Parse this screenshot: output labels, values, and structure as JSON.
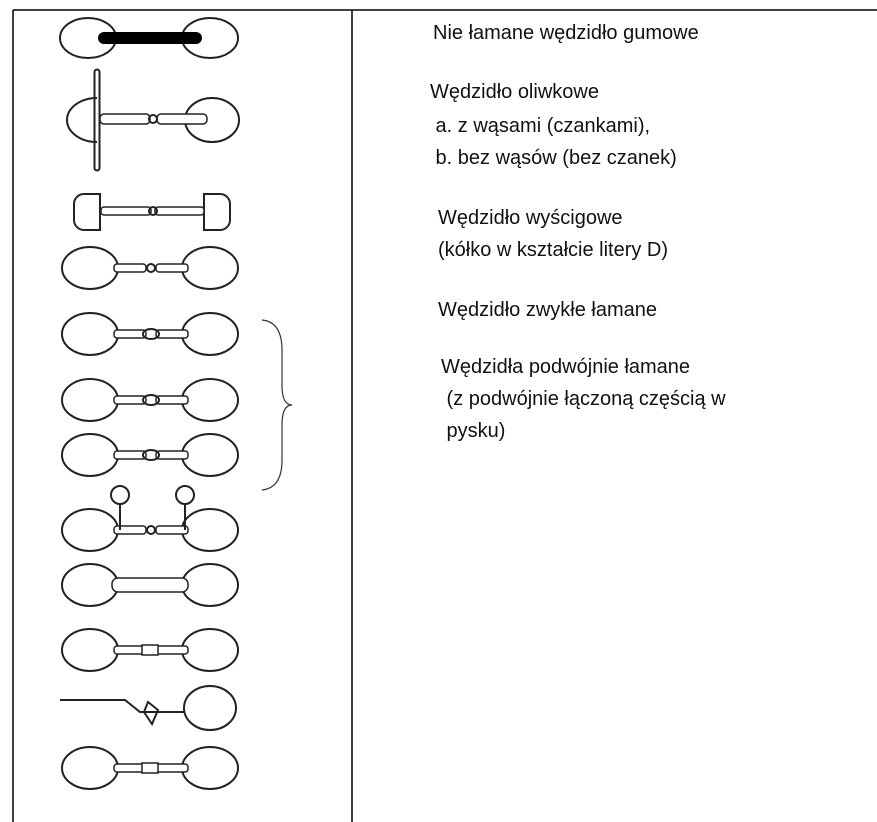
{
  "table": {
    "rows": [
      {
        "lines": [
          "Nie łamane wędzidło gumowe"
        ]
      },
      {
        "lines": [
          "Wędzidło oliwkowe",
          " a. z wąsami (czankami),",
          " b. bez wąsów (bez czanek)"
        ]
      },
      {
        "lines": [
          "Wędzidło wyścigowe",
          "(kółko w kształcie litery D)"
        ]
      },
      {
        "lines": [
          "Wędzidło zwykłe łamane"
        ]
      },
      {
        "lines": [
          "Wędzidła podwójnie łamane",
          " (z podwójnie łączoną częścią w",
          " pysku)"
        ]
      }
    ]
  }
}
